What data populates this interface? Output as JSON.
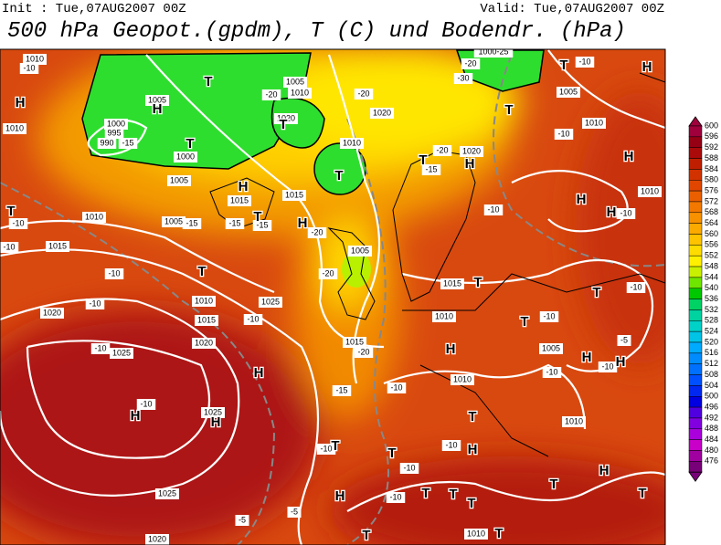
{
  "header": {
    "init": "Init : Tue,07AUG2007 00Z",
    "valid": "Valid: Tue,07AUG2007 00Z",
    "title": "500 hPa Geopot.(gpdm), T (C) und Bodendr. (hPa)"
  },
  "map": {
    "labels": [
      "1010",
      "-10",
      "1005",
      "1000",
      "995",
      "990",
      "-15",
      "1010",
      "1000",
      "1005",
      "1010",
      "1005",
      "-15",
      "-15",
      "-15",
      "-10",
      "-10",
      "1015",
      "-10",
      "1010",
      "-10",
      "1020",
      "1015",
      "-10",
      "1025",
      "1020",
      "-10",
      "1025",
      "-10",
      "1025",
      "1015",
      "1015",
      "-20",
      "-20",
      "1005",
      "1015",
      "1015",
      "-20",
      "-15",
      "-10",
      "1010",
      "1010",
      "1010",
      "1005",
      "-10",
      "-10",
      "-10",
      "-5",
      "-10",
      "1010",
      "-10",
      "-10",
      "-10",
      "1010",
      "1005",
      "-10",
      "1020",
      "-20",
      "-15",
      "1020",
      "1010",
      "-20",
      "-30",
      "1000-25",
      "-20",
      "1010",
      "1005",
      "1020",
      "-20",
      "-10",
      "-10",
      "-10",
      "-10",
      "-5",
      "-5",
      "1025",
      "1020",
      "1010"
    ],
    "markers": [
      "H",
      "H",
      "T",
      "T",
      "H",
      "T",
      "T",
      "H",
      "T",
      "T",
      "H",
      "H",
      "H",
      "T",
      "H",
      "H",
      "T",
      "H",
      "T",
      "T",
      "H",
      "H",
      "H",
      "T",
      "T",
      "T",
      "H",
      "H",
      "T",
      "T",
      "H",
      "T",
      "T",
      "H",
      "T",
      "T",
      "H",
      "T",
      "T",
      "T",
      "T"
    ]
  },
  "colorbar": {
    "labels": [
      600,
      596,
      592,
      588,
      584,
      580,
      576,
      572,
      568,
      564,
      560,
      556,
      552,
      548,
      544,
      540,
      536,
      532,
      528,
      524,
      520,
      516,
      512,
      508,
      504,
      500,
      496,
      492,
      488,
      484,
      480,
      476
    ],
    "colors": [
      "#a0003c",
      "#960014",
      "#aa0a0a",
      "#c01e00",
      "#d23200",
      "#e14600",
      "#eb5f00",
      "#f37800",
      "#f89100",
      "#fdaa00",
      "#ffc300",
      "#ffdc00",
      "#fff000",
      "#c8f000",
      "#6ee600",
      "#00c800",
      "#00d264",
      "#00d2a0",
      "#00d2c8",
      "#00c3e6",
      "#00aaff",
      "#008cff",
      "#0070ff",
      "#0050ff",
      "#0028f0",
      "#0000e0",
      "#5000e0",
      "#8200e0",
      "#aa00dc",
      "#c800c8",
      "#a000a0",
      "#780078"
    ]
  }
}
